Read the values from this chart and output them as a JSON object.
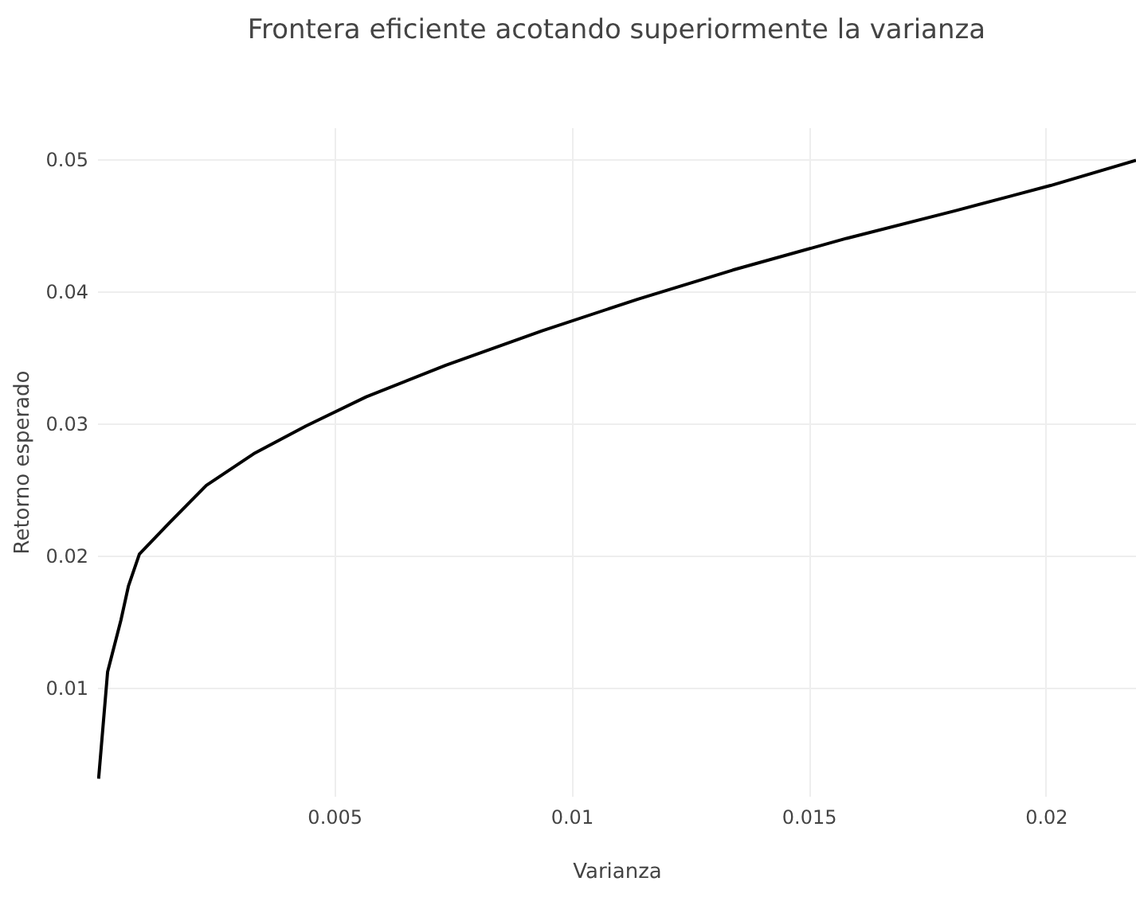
{
  "chart_data": {
    "type": "line",
    "title": "Frontera eficiente acotando superiormente la varianza",
    "xlabel": "Varianza",
    "ylabel": "Retorno esperado",
    "xlim": [
      0,
      0.0219
    ],
    "ylim": [
      0.0018,
      0.0524
    ],
    "xticks": [
      0.005,
      0.01,
      0.015,
      0.02
    ],
    "yticks": [
      0.01,
      0.02,
      0.03,
      0.04,
      0.05
    ],
    "grid": true,
    "series": [
      {
        "color": "#000000",
        "x": [
          3e-05,
          0.00022,
          0.0005,
          0.00066,
          0.00089,
          0.00153,
          0.0023,
          0.0033,
          0.0044,
          0.00567,
          0.00735,
          0.00938,
          0.0114,
          0.0134,
          0.0158,
          0.0181,
          0.0201,
          0.0219
        ],
        "values": [
          0.0031,
          0.0112,
          0.0151,
          0.0177,
          0.0201,
          0.0225,
          0.0253,
          0.0277,
          0.0298,
          0.032,
          0.0344,
          0.037,
          0.0394,
          0.0416,
          0.044,
          0.0461,
          0.048,
          0.0499
        ]
      }
    ]
  }
}
